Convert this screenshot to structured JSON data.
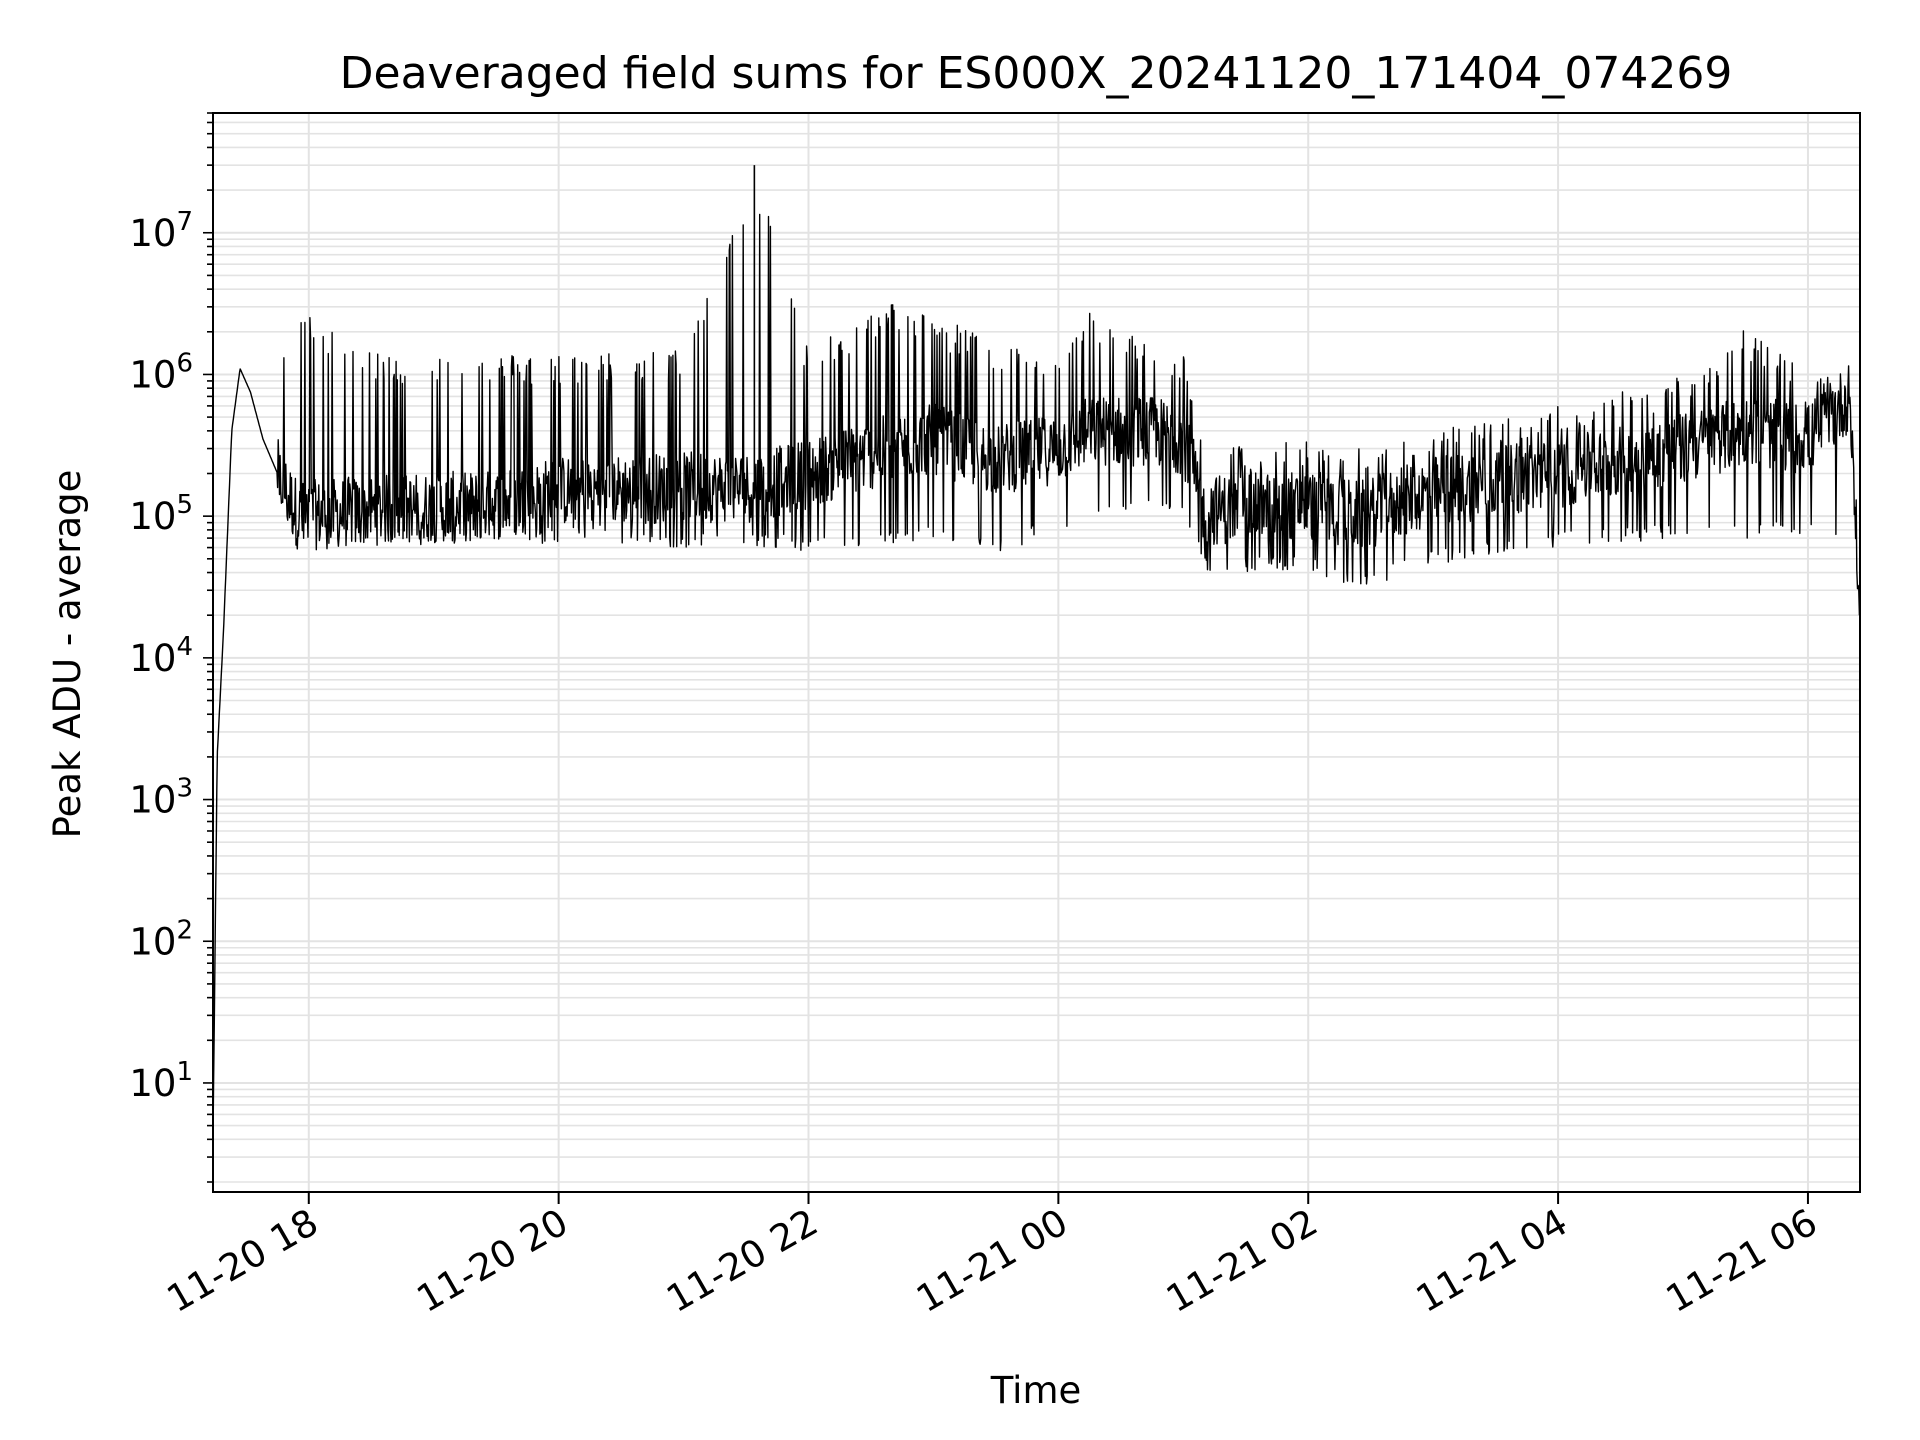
{
  "chart_data": {
    "type": "line",
    "title": "Deaveraged field sums for ES000X_20241120_171404_074269",
    "xlabel": "Time",
    "ylabel": "Peak ADU - average",
    "yscale": "log",
    "ylim": [
      1.7,
      70000000
    ],
    "xlim": [
      "2024-11-20 17:14",
      "2024-11-21 06:25"
    ],
    "grid": true,
    "line_color": "#000000",
    "grid_color": "#e3e3e3",
    "x_ticks": [
      {
        "time": "2024-11-20 18:00",
        "label": "11-20 18"
      },
      {
        "time": "2024-11-20 20:00",
        "label": "11-20 20"
      },
      {
        "time": "2024-11-20 22:00",
        "label": "11-20 22"
      },
      {
        "time": "2024-11-21 00:00",
        "label": "11-21 00"
      },
      {
        "time": "2024-11-21 02:00",
        "label": "11-21 02"
      },
      {
        "time": "2024-11-21 04:00",
        "label": "11-21 04"
      },
      {
        "time": "2024-11-21 06:00",
        "label": "11-21 06"
      }
    ],
    "y_ticks": [
      {
        "value": 10,
        "base": "10",
        "exp": "1"
      },
      {
        "value": 100,
        "base": "10",
        "exp": "2"
      },
      {
        "value": 1000,
        "base": "10",
        "exp": "3"
      },
      {
        "value": 10000,
        "base": "10",
        "exp": "4"
      },
      {
        "value": 100000,
        "base": "10",
        "exp": "5"
      },
      {
        "value": 1000000,
        "base": "10",
        "exp": "6"
      },
      {
        "value": 10000000,
        "base": "10",
        "exp": "7"
      }
    ],
    "series": [
      {
        "envelope": [
          {
            "time": "2024-11-20 17:14",
            "low": 4,
            "mid": 4,
            "high": 4
          },
          {
            "time": "2024-11-20 17:16",
            "low": 1000,
            "mid": 2000,
            "high": 3000
          },
          {
            "time": "2024-11-20 17:19",
            "low": 8000,
            "mid": 15000,
            "high": 22000
          },
          {
            "time": "2024-11-20 17:23",
            "low": 200000,
            "mid": 400000,
            "high": 500000
          },
          {
            "time": "2024-11-20 17:27",
            "low": 900000,
            "mid": 1100000,
            "high": 1200000
          },
          {
            "time": "2024-11-20 17:32",
            "low": 600000,
            "mid": 750000,
            "high": 800000
          },
          {
            "time": "2024-11-20 17:38",
            "low": 250000,
            "mid": 350000,
            "high": 400000
          },
          {
            "time": "2024-11-20 17:45",
            "low": 120000,
            "mid": 200000,
            "high": 1300000
          },
          {
            "time": "2024-11-20 17:55",
            "low": 60000,
            "mid": 100000,
            "high": 2900000
          },
          {
            "time": "2024-11-20 18:30",
            "low": 65000,
            "mid": 110000,
            "high": 1400000
          },
          {
            "time": "2024-11-20 19:30",
            "low": 60000,
            "mid": 120000,
            "high": 1400000
          },
          {
            "time": "2024-11-20 20:00",
            "low": 65000,
            "mid": 150000,
            "high": 1400000
          },
          {
            "time": "2024-11-20 21:00",
            "low": 60000,
            "mid": 160000,
            "high": 1500000
          },
          {
            "time": "2024-11-20 21:34",
            "low": 60000,
            "mid": 160000,
            "high": 30000000
          },
          {
            "time": "2024-11-20 22:00",
            "low": 55000,
            "mid": 200000,
            "high": 1500000
          },
          {
            "time": "2024-11-20 22:40",
            "low": 60000,
            "mid": 300000,
            "high": 3300000
          },
          {
            "time": "2024-11-20 23:00",
            "low": 70000,
            "mid": 350000,
            "high": 2600000
          },
          {
            "time": "2024-11-20 23:30",
            "low": 50000,
            "mid": 250000,
            "high": 1800000
          },
          {
            "time": "2024-11-21 00:00",
            "low": 80000,
            "mid": 300000,
            "high": 1200000
          },
          {
            "time": "2024-11-21 00:15",
            "low": 90000,
            "mid": 400000,
            "high": 2800000
          },
          {
            "time": "2024-11-21 00:45",
            "low": 100000,
            "mid": 400000,
            "high": 1600000
          },
          {
            "time": "2024-11-21 01:00",
            "low": 100000,
            "mid": 350000,
            "high": 1500000
          },
          {
            "time": "2024-11-21 01:10",
            "low": 40000,
            "mid": 110000,
            "high": 300000
          },
          {
            "time": "2024-11-21 02:00",
            "low": 40000,
            "mid": 120000,
            "high": 350000
          },
          {
            "time": "2024-11-21 02:25",
            "low": 30000,
            "mid": 100000,
            "high": 300000
          },
          {
            "time": "2024-11-21 03:00",
            "low": 45000,
            "mid": 150000,
            "high": 400000
          },
          {
            "time": "2024-11-21 04:00",
            "low": 60000,
            "mid": 200000,
            "high": 600000
          },
          {
            "time": "2024-11-21 05:00",
            "low": 70000,
            "mid": 300000,
            "high": 1000000
          },
          {
            "time": "2024-11-21 05:30",
            "low": 70000,
            "mid": 400000,
            "high": 2200000
          },
          {
            "time": "2024-11-21 06:00",
            "low": 70000,
            "mid": 350000,
            "high": 1000000
          },
          {
            "time": "2024-11-21 06:20",
            "low": 70000,
            "mid": 700000,
            "high": 900000
          },
          {
            "time": "2024-11-21 06:25",
            "low": 15000,
            "mid": 20000,
            "high": 70000
          }
        ]
      }
    ]
  }
}
